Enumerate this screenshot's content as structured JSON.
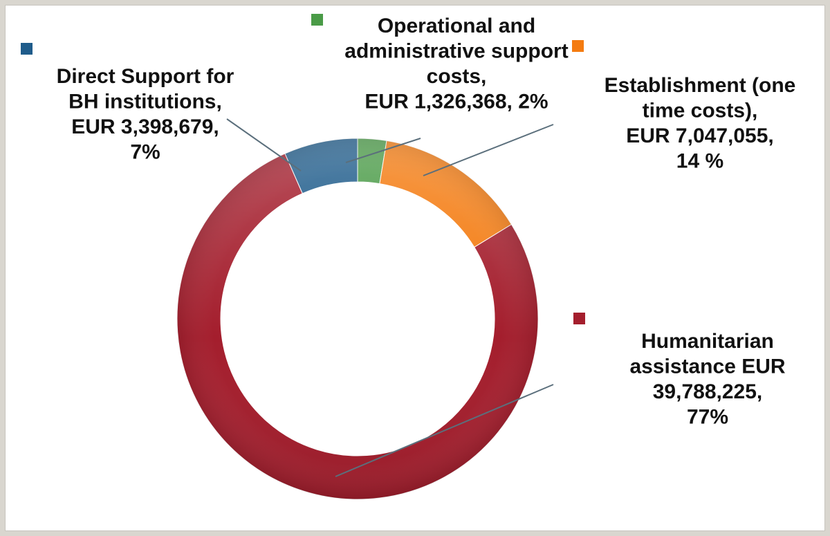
{
  "chart_data": {
    "type": "pie",
    "variant": "donut",
    "series": [
      {
        "name": "Direct Support for BH institutions",
        "value": 3398679,
        "percent": 7,
        "color": "#1f5c8b",
        "label_lines": [
          "Direct Support for",
          "BH institutions,",
          "EUR 3,398,679,",
          "7%"
        ]
      },
      {
        "name": "Operational and administrative support costs",
        "value": 1326368,
        "percent": 2,
        "color": "#4a9b47",
        "label_lines": [
          "Operational and",
          "administrative support",
          "costs,",
          "EUR 1,326,368, 2%"
        ]
      },
      {
        "name": "Establishment (one time costs)",
        "value": 7047055,
        "percent": 14,
        "color": "#f47b10",
        "label_lines": [
          "Establishment (one",
          "time costs),",
          "EUR 7,047,055,",
          "14 %"
        ]
      },
      {
        "name": "Humanitarian assistance",
        "value": 39788225,
        "percent": 77,
        "color": "#a41e2d",
        "label_lines": [
          "Humanitarian",
          "assistance EUR",
          "39,788,225,",
          "77%"
        ]
      }
    ],
    "legend": "data labels with color markers",
    "leader_color": "#5b6f7c"
  }
}
